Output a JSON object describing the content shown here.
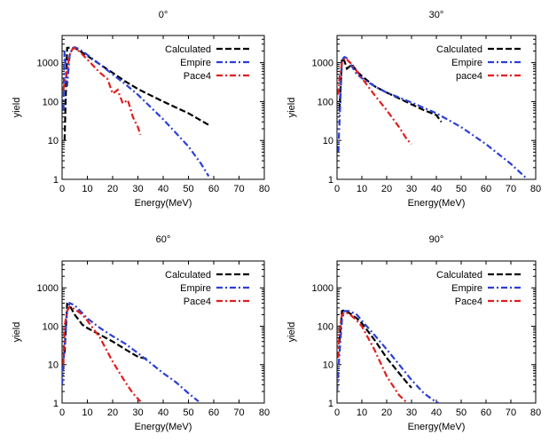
{
  "chart_data": [
    {
      "type": "line",
      "title": "0°",
      "xlabel": "Energy(MeV)",
      "ylabel": "yield",
      "xlim": [
        0,
        80
      ],
      "ylim": [
        1,
        5000
      ],
      "yscale": "log",
      "xticks": [
        "0",
        "10",
        "20",
        "30",
        "40",
        "50",
        "60",
        "70",
        "80"
      ],
      "yticks": [
        "1",
        "10",
        "100",
        "1000"
      ],
      "legend": "top-right",
      "series": [
        {
          "name": "Calculated",
          "color": "#000000",
          "x": [
            1,
            2,
            3,
            5,
            7,
            10,
            15,
            20,
            25,
            30,
            40,
            50,
            58
          ],
          "y": [
            10,
            2400,
            2450,
            2400,
            2000,
            1500,
            900,
            550,
            330,
            210,
            100,
            50,
            25
          ]
        },
        {
          "name": "Empire",
          "color": "#2b3fd6",
          "x": [
            0.5,
            1,
            2,
            3,
            4,
            5,
            7,
            10,
            15,
            20,
            25,
            30,
            40,
            50,
            55,
            58
          ],
          "y": [
            60,
            2000,
            250,
            1500,
            2300,
            2500,
            2200,
            1600,
            900,
            500,
            280,
            150,
            35,
            7,
            2.5,
            1.2
          ]
        },
        {
          "name": "Pace4",
          "color": "#e01e1e",
          "x": [
            0.5,
            1,
            2,
            3,
            4,
            5,
            7,
            10,
            15,
            18,
            20,
            22,
            24,
            26,
            28,
            30,
            31
          ],
          "y": [
            200,
            300,
            600,
            1600,
            2200,
            2400,
            1900,
            1200,
            550,
            380,
            160,
            200,
            90,
            110,
            40,
            22,
            14
          ]
        }
      ]
    },
    {
      "type": "line",
      "title": "30°",
      "xlabel": "Energy(MeV)",
      "ylabel": "yield",
      "xlim": [
        0,
        80
      ],
      "ylim": [
        1,
        5000
      ],
      "yscale": "log",
      "xticks": [
        "0",
        "10",
        "20",
        "30",
        "40",
        "50",
        "60",
        "70",
        "80"
      ],
      "yticks": [
        "1",
        "10",
        "100",
        "1000"
      ],
      "legend": "top-right",
      "series": [
        {
          "name": "Calculated",
          "color": "#000000",
          "x": [
            1,
            2,
            3,
            4,
            6,
            8,
            10,
            15,
            20,
            25,
            30,
            35,
            40,
            42
          ],
          "y": [
            60,
            1300,
            1100,
            700,
            900,
            600,
            450,
            250,
            170,
            120,
            85,
            60,
            45,
            30
          ]
        },
        {
          "name": "Empire",
          "color": "#2b3fd6",
          "x": [
            0.5,
            1,
            2,
            3,
            4,
            6,
            8,
            10,
            15,
            20,
            30,
            40,
            50,
            60,
            70,
            76
          ],
          "y": [
            5,
            30,
            1200,
            1400,
            1300,
            800,
            500,
            400,
            250,
            170,
            95,
            50,
            22,
            8,
            2.5,
            1.1
          ]
        },
        {
          "name": "pace4",
          "color": "#e01e1e",
          "x": [
            0.5,
            1,
            2,
            3,
            4,
            6,
            8,
            10,
            15,
            20,
            25,
            28,
            30
          ],
          "y": [
            150,
            400,
            1000,
            1300,
            1200,
            900,
            600,
            400,
            150,
            60,
            22,
            11,
            8
          ]
        }
      ]
    },
    {
      "type": "line",
      "title": "60°",
      "xlabel": "Energy(MeV)",
      "ylabel": "yield",
      "xlim": [
        0,
        80
      ],
      "ylim": [
        1,
        5000
      ],
      "yscale": "log",
      "xticks": [
        "0",
        "10",
        "20",
        "30",
        "40",
        "50",
        "60",
        "70",
        "80"
      ],
      "yticks": [
        "1",
        "10",
        "100",
        "1000"
      ],
      "legend": "top-right",
      "series": [
        {
          "name": "Calculated",
          "color": "#000000",
          "x": [
            1,
            2,
            3,
            5,
            8,
            10,
            15,
            20,
            25,
            30,
            34
          ],
          "y": [
            20,
            380,
            350,
            200,
            110,
            90,
            60,
            40,
            25,
            16,
            14
          ]
        },
        {
          "name": "Empire",
          "color": "#2b3fd6",
          "x": [
            0,
            1,
            2,
            3,
            5,
            8,
            10,
            15,
            20,
            25,
            30,
            35,
            40,
            45,
            50,
            54
          ],
          "y": [
            3,
            30,
            250,
            400,
            350,
            220,
            160,
            90,
            55,
            35,
            20,
            11,
            6,
            3.5,
            1.8,
            1.1
          ]
        },
        {
          "name": "Pace4",
          "color": "#e01e1e",
          "x": [
            0.5,
            1,
            2,
            3,
            5,
            8,
            10,
            15,
            20,
            25,
            28,
            30,
            31
          ],
          "y": [
            10,
            100,
            250,
            320,
            280,
            200,
            140,
            50,
            12,
            3.5,
            1.8,
            1.3,
            1.1
          ]
        }
      ]
    },
    {
      "type": "line",
      "title": "90°",
      "xlabel": "Energy(MeV)",
      "ylabel": "yield",
      "xlim": [
        0,
        80
      ],
      "ylim": [
        1,
        5000
      ],
      "yscale": "log",
      "xticks": [
        "0",
        "10",
        "20",
        "30",
        "40",
        "50",
        "60",
        "70",
        "80"
      ],
      "yticks": [
        "1",
        "10",
        "100",
        "1000"
      ],
      "legend": "top-right",
      "series": [
        {
          "name": "Calculated",
          "color": "#000000",
          "x": [
            1,
            2,
            3,
            5,
            8,
            10,
            15,
            20,
            25,
            28,
            30
          ],
          "y": [
            40,
            250,
            260,
            220,
            160,
            120,
            45,
            15,
            6,
            3.5,
            2.5
          ]
        },
        {
          "name": "Empire",
          "color": "#2b3fd6",
          "x": [
            0,
            1,
            2,
            3,
            5,
            8,
            10,
            15,
            20,
            25,
            30,
            35,
            40,
            41
          ],
          "y": [
            2,
            20,
            150,
            250,
            250,
            200,
            140,
            60,
            25,
            10,
            4,
            1.8,
            1.05,
            1
          ]
        },
        {
          "name": "Pace4",
          "color": "#e01e1e",
          "x": [
            0.5,
            1,
            2,
            3,
            5,
            8,
            10,
            15,
            20,
            25,
            28
          ],
          "y": [
            15,
            80,
            200,
            230,
            210,
            140,
            100,
            25,
            5,
            1.6,
            1.05
          ]
        }
      ]
    }
  ]
}
